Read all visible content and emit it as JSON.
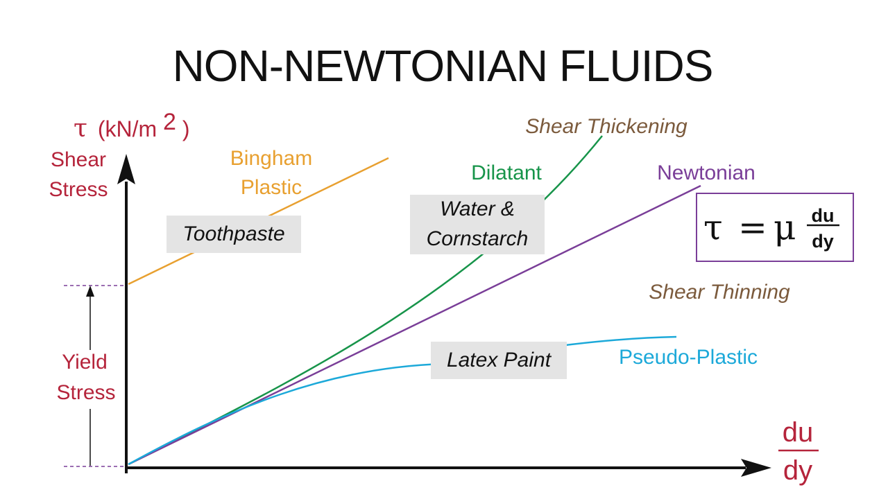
{
  "title": "NON-NEWTONIAN FLUIDS",
  "y_axis": {
    "symbol": "τ",
    "unit": "(kN/m",
    "exponent": "2",
    "unit_close": ")",
    "name_line1": "Shear",
    "name_line2": "Stress"
  },
  "x_axis": {
    "numerator": "du",
    "denominator": "dy"
  },
  "yield": {
    "line1": "Yield",
    "line2": "Stress"
  },
  "bingham": {
    "line1": "Bingham",
    "line2": "Plastic",
    "example": "Toothpaste"
  },
  "dilatant": {
    "category": "Shear Thickening",
    "name": "Dilatant",
    "example_line1": "Water &",
    "example_line2": "Cornstarch"
  },
  "newtonian": {
    "name": "Newtonian"
  },
  "pseudo": {
    "category": "Shear Thinning",
    "name": "Pseudo-Plastic",
    "example": "Latex Paint"
  },
  "equation": {
    "lhs": "τ",
    "eq": "=",
    "coef": "μ",
    "num": "du",
    "den": "dy"
  },
  "colors": {
    "axis_text": "#b5243b",
    "bingham": "#e8a030",
    "dilatant": "#17944a",
    "newtonian": "#7a3e98",
    "pseudo": "#1ca9d9",
    "category": "#7b5a3c",
    "label_box": "#e4e4e4",
    "yield_dash": "#7a3e98"
  }
}
